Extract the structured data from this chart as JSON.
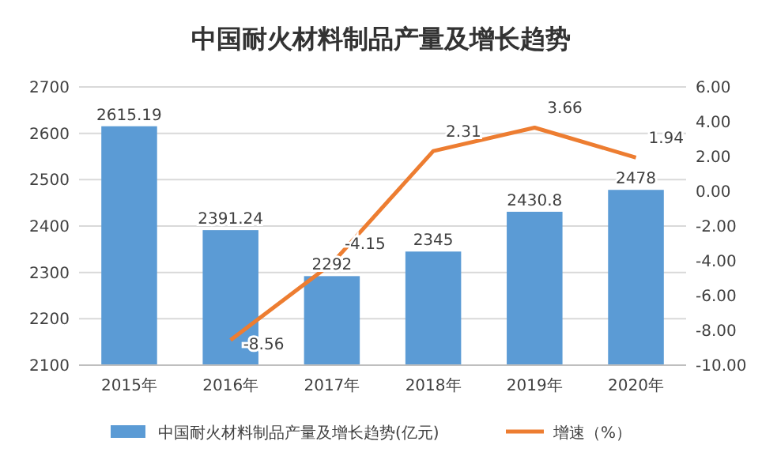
{
  "chart_data": {
    "type": "bar",
    "title": "中国耐火材料制品产量及增长趋势",
    "categories": [
      "2015年",
      "2016年",
      "2017年",
      "2018年",
      "2019年",
      "2020年"
    ],
    "series": [
      {
        "name": "中国耐火材料制品产量及增长趋势(亿元)",
        "color": "#5b9bd5",
        "values": [
          2615.19,
          2391.24,
          2292,
          2345,
          2430.8,
          2478
        ]
      },
      {
        "name": "增速（%）",
        "type": "line",
        "axis": "y2",
        "color": "#ed7d31",
        "values": [
          null,
          -8.56,
          -4.15,
          2.31,
          3.66,
          1.94
        ]
      }
    ],
    "ylim": [
      2100,
      2700
    ],
    "yticks": [
      2100,
      2200,
      2300,
      2400,
      2500,
      2600,
      2700
    ],
    "y2lim": [
      -10,
      6
    ],
    "y2ticks": [
      {
        "value": -10,
        "label": "-10.00"
      },
      {
        "value": -8,
        "label": "-8.00"
      },
      {
        "value": -6,
        "label": "-6.00"
      },
      {
        "value": -4,
        "label": "-4.00"
      },
      {
        "value": -2,
        "label": "-2.00"
      },
      {
        "value": 0,
        "label": "0.00"
      },
      {
        "value": 2,
        "label": "2.00"
      },
      {
        "value": 4,
        "label": "4.00"
      },
      {
        "value": 6,
        "label": "6.00"
      }
    ],
    "grid": "y",
    "legend": "bottom",
    "data_labels": true,
    "marker": "none",
    "line_style": "solid"
  }
}
